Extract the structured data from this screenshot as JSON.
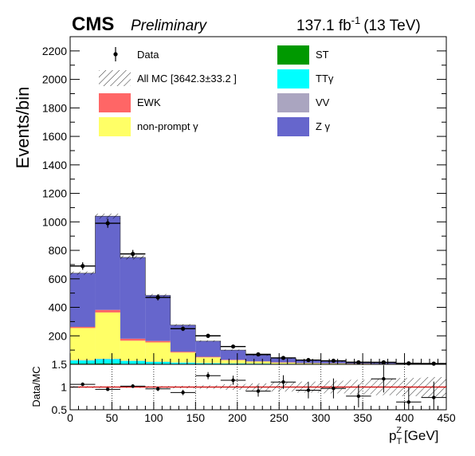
{
  "header": {
    "experiment": "CMS",
    "status": "Preliminary",
    "lumi_value": "137.1 fb",
    "lumi_exp": "-1",
    "energy": "(13 TeV)"
  },
  "colors": {
    "Zg": "#6666cc",
    "nonprompt": "#ffff66",
    "EWK": "#ff6666",
    "VV": "#aaa5c0",
    "TTg": "#00ffff",
    "ST": "#009900",
    "data": "#000000",
    "ratio_line": "#cc0000"
  },
  "chart_data": {
    "type": "bar",
    "stacked": true,
    "ylabel": "Events/bin",
    "xlabel": "p",
    "xlabel_sub": "T",
    "xlabel_sup": "Z",
    "xlabel_unit": "[GeV]",
    "xlim": [
      0,
      450
    ],
    "ylim": [
      0,
      2300
    ],
    "yticks": [
      200,
      400,
      600,
      800,
      1000,
      1200,
      1400,
      1600,
      1800,
      2000,
      2200
    ],
    "xticks": [
      0,
      50,
      100,
      150,
      200,
      250,
      300,
      350,
      400,
      450
    ],
    "bin_edges": [
      0,
      30,
      60,
      90,
      120,
      150,
      180,
      210,
      240,
      270,
      300,
      330,
      360,
      390,
      420,
      450
    ],
    "series": [
      {
        "name": "ST",
        "key": "ST",
        "values": [
          5,
          6,
          4,
          3,
          2,
          1,
          1,
          1,
          0.5,
          0.5,
          0.5,
          0.3,
          0.3,
          0.2,
          0.2
        ]
      },
      {
        "name": "TTγ",
        "key": "TTg",
        "values": [
          22,
          30,
          20,
          14,
          10,
          7,
          5,
          4,
          3,
          2,
          1.5,
          1,
          1,
          0.8,
          0.5
        ]
      },
      {
        "name": "VV",
        "key": "VV",
        "values": [
          3,
          3,
          2,
          2,
          1,
          1,
          1,
          0.5,
          0.5,
          0.3,
          0.3,
          0.2,
          0.2,
          0.1,
          0.1
        ]
      },
      {
        "name": "non-prompt γ",
        "key": "nonprompt",
        "values": [
          225,
          325,
          140,
          135,
          70,
          40,
          22,
          14,
          8,
          5,
          4,
          3,
          2,
          2,
          1
        ]
      },
      {
        "name": "EWK",
        "key": "EWK",
        "values": [
          8,
          18,
          14,
          10,
          6,
          4,
          3,
          2,
          2,
          1,
          1,
          1,
          0.5,
          0.5,
          0.5
        ]
      },
      {
        "name": "Z γ",
        "key": "Zg",
        "values": [
          377,
          658,
          570,
          320,
          186,
          110,
          68,
          44,
          30,
          21,
          15,
          11,
          8,
          6,
          5
        ]
      }
    ],
    "data": {
      "x": [
        15,
        45,
        75,
        105,
        135,
        165,
        195,
        225,
        255,
        285,
        315,
        345,
        375,
        405,
        435
      ],
      "y": [
        690,
        990,
        775,
        470,
        250,
        200,
        125,
        70,
        45,
        30,
        25,
        14,
        14,
        7,
        5
      ]
    },
    "mc_uncertainty": [
      12,
      18,
      14,
      10,
      7,
      5,
      4,
      3,
      3,
      2.5,
      2,
      2,
      1.5,
      1.5,
      1.5
    ],
    "ratio": {
      "ylabel": "Data/MC",
      "ylim": [
        0.5,
        1.5
      ],
      "yticks": [
        0.5,
        1,
        1.5
      ],
      "values": [
        1.06,
        0.95,
        1.02,
        0.96,
        0.88,
        1.25,
        1.15,
        0.91,
        1.11,
        0.93,
        0.97,
        0.8,
        1.18,
        0.67,
        0.77
      ],
      "errors": [
        0.04,
        0.03,
        0.04,
        0.05,
        0.06,
        0.08,
        0.1,
        0.12,
        0.15,
        0.18,
        0.22,
        0.25,
        0.3,
        0.32,
        0.35
      ],
      "band": [
        0.02,
        0.02,
        0.02,
        0.02,
        0.03,
        0.04,
        0.06,
        0.08,
        0.1,
        0.12,
        0.14,
        0.16,
        0.18,
        0.2,
        0.22
      ]
    },
    "legend": {
      "placement": "top",
      "entries": [
        {
          "label": "Data",
          "style": "marker"
        },
        {
          "label": "ST",
          "style": "fill",
          "color_key": "ST"
        },
        {
          "label": "All MC [3642.3±33.2 ]",
          "style": "hatch"
        },
        {
          "label": "TTγ",
          "style": "fill",
          "color_key": "TTg"
        },
        {
          "label": "EWK",
          "style": "fill",
          "color_key": "EWK"
        },
        {
          "label": "VV",
          "style": "fill",
          "color_key": "VV"
        },
        {
          "label": "non-prompt γ",
          "style": "fill",
          "color_key": "nonprompt"
        },
        {
          "label": "Z γ",
          "style": "fill",
          "color_key": "Zg"
        }
      ]
    }
  }
}
